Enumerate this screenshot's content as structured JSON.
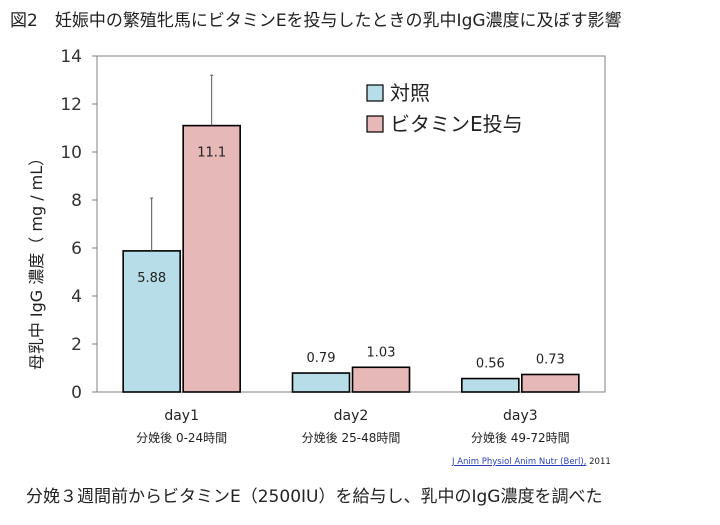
{
  "figure": {
    "title": "図2　妊娠中の繁殖牝馬にビタミンEを投与したときの乳中IgG濃度に及ぼす影響",
    "source_link": "J Anim Physiol Anim Nutr (Berl),",
    "source_year": " 2011",
    "caption": "分娩３週間前からビタミンE（2500IU）を給与し、乳中のIgG濃度を調べた"
  },
  "chart_data": {
    "type": "bar",
    "title": "図2　妊娠中の繁殖牝馬にビタミンEを投与したときの乳中IgG濃度に及ぼす影響",
    "ylabel": "母乳中 IgG 濃度（ mg / mL）",
    "xlabel": "",
    "ylim": [
      0,
      14
    ],
    "yticks": [
      0,
      2,
      4,
      6,
      8,
      10,
      12,
      14
    ],
    "grid": false,
    "legend_position": "top-right",
    "categories": [
      "day1",
      "day2",
      "day3"
    ],
    "sublabels": [
      "分娩後 0-24時間",
      "分娩後 25-48時間",
      "分娩後 49-72時間"
    ],
    "series": [
      {
        "name": "対照",
        "color": "#b7dde8",
        "values": [
          5.88,
          0.79,
          0.56
        ],
        "errors": [
          2.2,
          0.0,
          0.0
        ],
        "value_labels": [
          "5.88",
          "0.79",
          "0.56"
        ]
      },
      {
        "name": "ビタミンE投与",
        "color": "#e6b8b7",
        "values": [
          11.1,
          1.03,
          0.73
        ],
        "errors": [
          2.1,
          0.0,
          0.0
        ],
        "value_labels": [
          "11.1",
          "1.03",
          "0.73"
        ]
      }
    ]
  }
}
